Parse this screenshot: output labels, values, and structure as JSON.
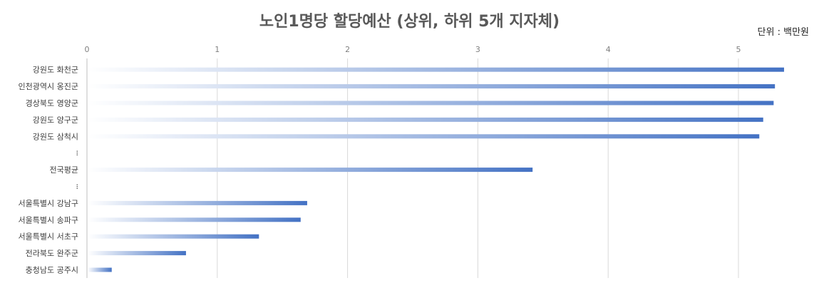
{
  "chart_data": {
    "type": "bar",
    "orientation": "horizontal",
    "title": "노인1명당 할당예산 (상위, 하위 5개 지자체)",
    "unit_label": "단위 : 백만원",
    "xlim": [
      0,
      5.5
    ],
    "x_ticks": [
      "0",
      "1",
      "2",
      "3",
      "4",
      "5"
    ],
    "grid": true,
    "categories": [
      "강원도 화천군",
      "인천광역시 옹진군",
      "경상북도 영양군",
      "강원도 양구군",
      "강원도 삼척시",
      "⁝",
      "전국평균",
      "⁝",
      "서울특별시 강남구",
      "서울특별시 송파구",
      "서울특별시 서초구",
      "전라북도 완주군",
      "충청남도 공주시"
    ],
    "values": [
      5.35,
      5.28,
      5.27,
      5.19,
      5.16,
      null,
      3.42,
      null,
      1.69,
      1.64,
      1.32,
      0.76,
      0.19
    ],
    "bar_color": "#4472c4"
  }
}
